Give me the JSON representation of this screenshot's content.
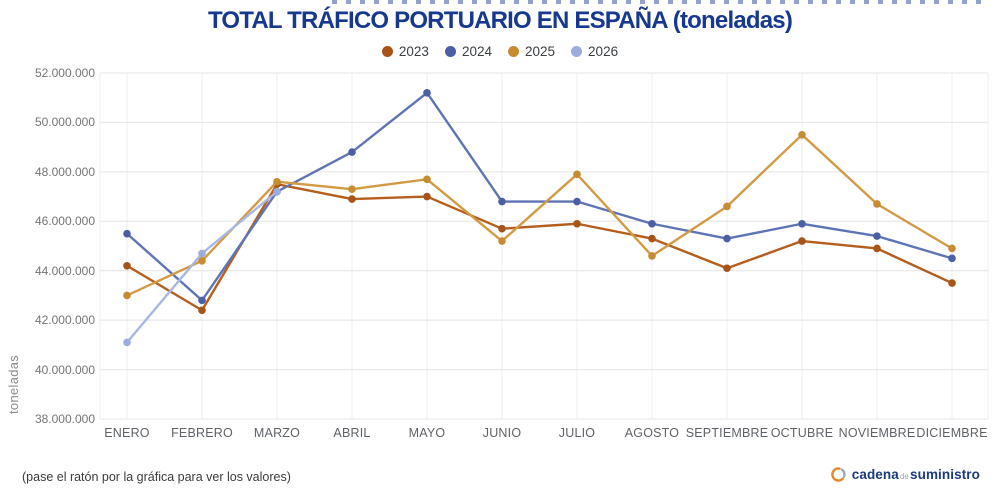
{
  "page": {
    "footer_note": "(pase el ratón por la gráfica para ver los valores)",
    "logo": {
      "text_main": "cadena",
      "text_mid": "de",
      "text_end": "suministro"
    }
  },
  "chart_data": {
    "type": "line",
    "title": "TOTAL TRÁFICO PORTUARIO EN ESPAÑA (toneladas)",
    "ylabel": "toneladas",
    "ylim": [
      38000000,
      52000000
    ],
    "grid": true,
    "legend_position": "top",
    "categories": [
      "ENERO",
      "FEBRERO",
      "MARZO",
      "ABRIL",
      "MAYO",
      "JUNIO",
      "JULIO",
      "AGOSTO",
      "SEPTIEMBRE",
      "OCTUBRE",
      "NOVIEMBRE",
      "DICIEMBRE"
    ],
    "y_ticks": [
      {
        "label": "52.000.000",
        "value": 52000000
      },
      {
        "label": "50.000.000",
        "value": 50000000
      },
      {
        "label": "48.000.000",
        "value": 48000000
      },
      {
        "label": "46.000.000",
        "value": 46000000
      },
      {
        "label": "44.000.000",
        "value": 44000000
      },
      {
        "label": "42.000.000",
        "value": 42000000
      },
      {
        "label": "40.000.000",
        "value": 40000000
      },
      {
        "label": "38.000.000",
        "value": 38000000
      }
    ],
    "series": [
      {
        "name": "2023",
        "color": "#b55e1d",
        "marker_color": "#a65417",
        "values": [
          44200000,
          42400000,
          47500000,
          46900000,
          47000000,
          45700000,
          45900000,
          45300000,
          44100000,
          45200000,
          44900000,
          43500000
        ]
      },
      {
        "name": "2024",
        "color": "#5e74b5",
        "marker_color": "#4c5fa5",
        "values": [
          45500000,
          42800000,
          47200000,
          48800000,
          51200000,
          46800000,
          46800000,
          45900000,
          45300000,
          45900000,
          45400000,
          44500000
        ]
      },
      {
        "name": "2025",
        "color": "#d39a44",
        "marker_color": "#c68b33",
        "values": [
          43000000,
          44400000,
          47600000,
          47300000,
          47700000,
          45200000,
          47900000,
          44600000,
          46600000,
          49500000,
          46700000,
          44900000
        ]
      },
      {
        "name": "2026",
        "color": "#a9b7e4",
        "marker_color": "#9dacdf",
        "values": [
          41100000,
          44700000,
          47200000,
          null,
          null,
          null,
          null,
          null,
          null,
          null,
          null,
          null
        ]
      }
    ]
  }
}
